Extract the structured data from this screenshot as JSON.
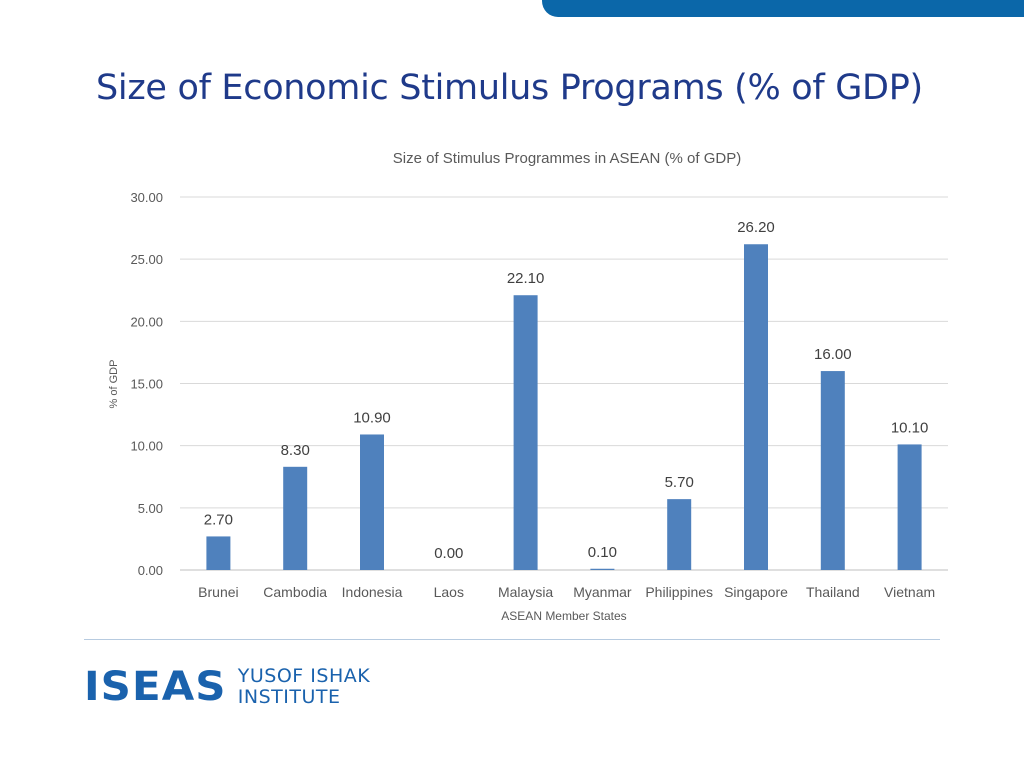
{
  "slide": {
    "title": "Size of Economic Stimulus Programs (% of GDP)"
  },
  "logo": {
    "mark": "ISEAS",
    "line1": "YUSOF ISHAK",
    "line2": "INSTITUTE"
  },
  "colors": {
    "bar": "#4f81bd",
    "title": "#1f3a8a",
    "accent_bar": "#0b67a9",
    "grid": "#d9d9d9",
    "axis_text": "#595959"
  },
  "chart_data": {
    "type": "bar",
    "title": "Size of Stimulus Programmes in ASEAN (% of GDP)",
    "xlabel": "ASEAN Member States",
    "ylabel": "% of GDP",
    "categories": [
      "Brunei",
      "Cambodia",
      "Indonesia",
      "Laos",
      "Malaysia",
      "Myanmar",
      "Philippines",
      "Singapore",
      "Thailand",
      "Vietnam"
    ],
    "values": [
      2.7,
      8.3,
      10.9,
      0.0,
      22.1,
      0.1,
      5.7,
      26.2,
      16.0,
      10.1
    ],
    "data_labels": [
      "2.70",
      "8.30",
      "10.90",
      "0.00",
      "22.10",
      "0.10",
      "5.70",
      "26.20",
      "16.00",
      "10.10"
    ],
    "yticks": [
      0,
      5,
      10,
      15,
      20,
      25,
      30
    ],
    "ytick_labels": [
      "0.00",
      "5.00",
      "10.00",
      "15.00",
      "20.00",
      "25.00",
      "30.00"
    ],
    "ylim": [
      0,
      30
    ],
    "grid": true,
    "legend": "none"
  }
}
